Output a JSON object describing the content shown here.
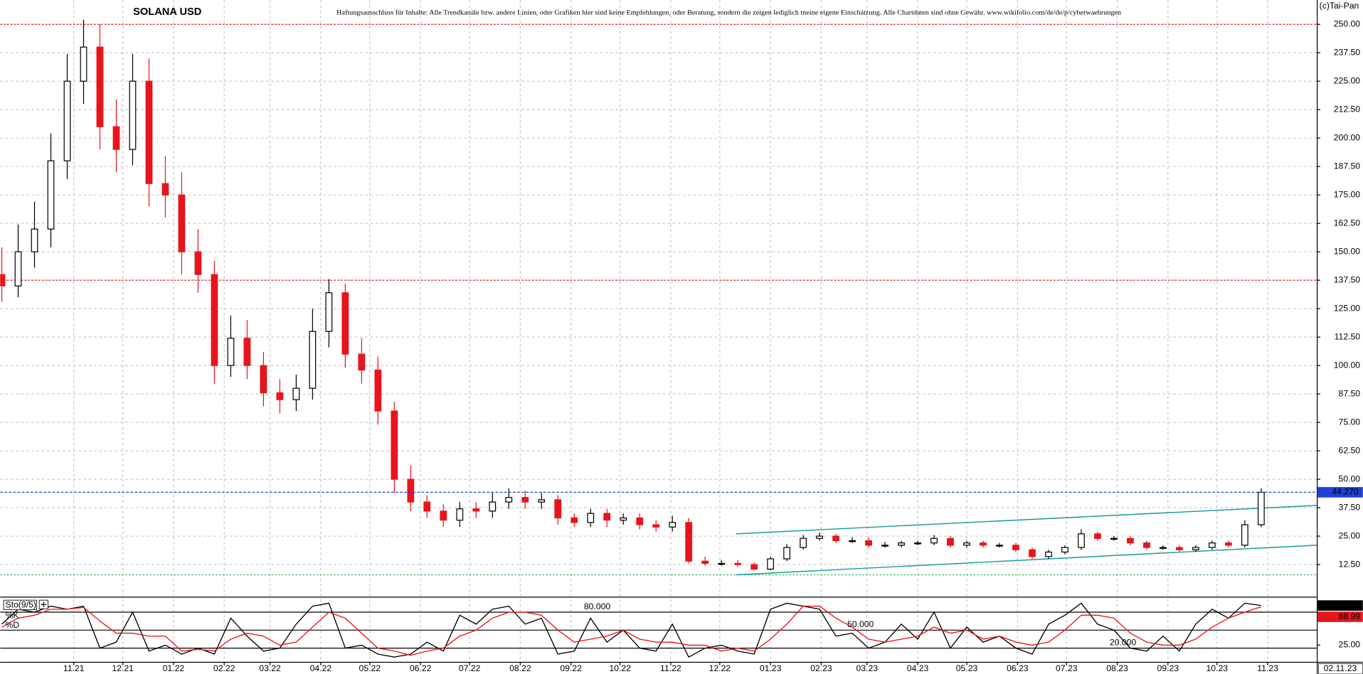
{
  "header": {
    "title": "SOLANA USD",
    "disclaimer": "Haftungsausschluss für Inhalte: Alle Trendkanäle bzw. andere Linien, oder Grafiken hier sind keine Empfehlungen, oder Beratung, sondern die zeigen lediglich meine eigene Einschätzung. Alle Chartdaten sind ohne Gewähr. www.wikifolio.com/de/de/p/cyberwaehrungen",
    "copyright": "(c)Tai-Pan"
  },
  "chart_data": [
    {
      "type": "candlestick",
      "name": "SOLANA USD",
      "x": [
        -44,
        -34,
        -24,
        -14,
        -4,
        6,
        16,
        26,
        36,
        46,
        56,
        66,
        76,
        86,
        96,
        106,
        116,
        126,
        136,
        146,
        156,
        166,
        176,
        186,
        196,
        206,
        216,
        226,
        236,
        246,
        256,
        266,
        276,
        286,
        296,
        306,
        316,
        326,
        336,
        346,
        356,
        366,
        376,
        386,
        396,
        406,
        416,
        426,
        436,
        446,
        456,
        466,
        476,
        486,
        496,
        506,
        516,
        526,
        536,
        546,
        556,
        566,
        576,
        586,
        596,
        606,
        616,
        626,
        636,
        646,
        656,
        666,
        676,
        686,
        696,
        706,
        716,
        726
      ],
      "open": [
        140,
        135,
        150,
        160,
        190,
        225,
        240,
        205,
        195,
        225,
        180,
        175,
        150,
        140,
        100,
        112,
        100,
        88,
        85,
        90,
        115,
        132,
        105,
        98,
        80,
        50,
        40,
        36,
        32,
        37,
        36,
        40,
        42,
        40,
        41,
        33,
        31,
        35,
        32,
        33,
        30,
        29,
        31,
        14,
        13,
        13,
        12.5,
        10.5,
        15,
        20,
        24,
        25,
        23,
        23,
        21,
        21,
        22,
        22,
        24,
        21,
        22,
        21,
        21,
        19,
        16,
        18,
        20,
        26,
        24,
        24,
        22,
        20,
        20,
        19,
        20,
        22,
        21,
        30
      ],
      "high": [
        152,
        162,
        172,
        202,
        237,
        252,
        250,
        217,
        237,
        235,
        192,
        185,
        160,
        146,
        122,
        120,
        106,
        94,
        96,
        125,
        138,
        136,
        112,
        104,
        84,
        56,
        43,
        39,
        40,
        40,
        44,
        46,
        45,
        44,
        43,
        35,
        37,
        37,
        35,
        35,
        32,
        34,
        33,
        16,
        14.5,
        14.5,
        13.5,
        16,
        21.5,
        25.5,
        26.5,
        26,
        24.5,
        24.5,
        22.5,
        23,
        23,
        25.5,
        25,
        23,
        23,
        22,
        22,
        20,
        19,
        21,
        28,
        27,
        25,
        25,
        23,
        21,
        21,
        21,
        23,
        23,
        32,
        46
      ],
      "low": [
        128,
        130,
        143,
        152,
        182,
        215,
        195,
        185,
        188,
        170,
        165,
        140,
        132,
        92,
        95,
        94,
        82,
        79,
        80,
        85,
        108,
        99,
        92,
        74,
        44,
        36,
        33,
        29,
        29,
        33,
        33,
        37,
        37,
        37,
        30,
        29,
        29,
        29,
        30,
        28,
        27,
        27,
        13,
        12,
        12,
        11.5,
        10,
        10,
        14,
        19,
        23,
        22,
        22,
        20,
        20,
        20,
        21,
        21,
        20,
        20,
        20,
        20,
        18,
        15,
        15,
        17,
        19,
        23,
        23,
        21,
        19,
        19,
        18,
        18,
        19,
        20,
        20,
        29
      ],
      "close": [
        135,
        150,
        160,
        190,
        225,
        240,
        205,
        195,
        225,
        180,
        175,
        150,
        140,
        100,
        112,
        100,
        88,
        85,
        90,
        115,
        132,
        105,
        98,
        80,
        50,
        40,
        36,
        32,
        37,
        36,
        40,
        42,
        40,
        41,
        33,
        31,
        35,
        32,
        33,
        30,
        29,
        31,
        14,
        13,
        13,
        12.5,
        10.5,
        15,
        20,
        24,
        25,
        23,
        23,
        21,
        21,
        22,
        22,
        24,
        21,
        22,
        21,
        21,
        19,
        16,
        18,
        20,
        26,
        24,
        24,
        22,
        20,
        20,
        19,
        20,
        22,
        21,
        30,
        44.27
      ],
      "up_color": "#000000",
      "down_color": "#e8141c",
      "xlim": [
        -45,
        760
      ],
      "ylim": [
        -1.25,
        260.7
      ],
      "xticks": [
        {
          "value": 0,
          "label": "11.21"
        },
        {
          "value": 30,
          "label": "12.21"
        },
        {
          "value": 61,
          "label": "01.22"
        },
        {
          "value": 92,
          "label": "02.22"
        },
        {
          "value": 120,
          "label": "03.22"
        },
        {
          "value": 151,
          "label": "04.22"
        },
        {
          "value": 181,
          "label": "05.22"
        },
        {
          "value": 212,
          "label": "06.22"
        },
        {
          "value": 242,
          "label": "07.22"
        },
        {
          "value": 273,
          "label": "08.22"
        },
        {
          "value": 304,
          "label": "09.22"
        },
        {
          "value": 334,
          "label": "10.22"
        },
        {
          "value": 365,
          "label": "11.22"
        },
        {
          "value": 395,
          "label": "12.22"
        },
        {
          "value": 426,
          "label": "01.23"
        },
        {
          "value": 457,
          "label": "02.23"
        },
        {
          "value": 485,
          "label": "03.23"
        },
        {
          "value": 516,
          "label": "04.23"
        },
        {
          "value": 546,
          "label": "05.23"
        },
        {
          "value": 577,
          "label": "06.23"
        },
        {
          "value": 607,
          "label": "07.23"
        },
        {
          "value": 638,
          "label": "08.23"
        },
        {
          "value": 669,
          "label": "09.23"
        },
        {
          "value": 699,
          "label": "10.23"
        },
        {
          "value": 730,
          "label": "11.23"
        }
      ],
      "yticks": [
        {
          "value": 12.5,
          "label": "12.50"
        },
        {
          "value": 25,
          "label": "25.00"
        },
        {
          "value": 37.5,
          "label": "37.50"
        },
        {
          "value": 50,
          "label": "50.00"
        },
        {
          "value": 62.5,
          "label": "62.50"
        },
        {
          "value": 75,
          "label": "75.00"
        },
        {
          "value": 87.5,
          "label": "87.50"
        },
        {
          "value": 100,
          "label": "100.00"
        },
        {
          "value": 112.5,
          "label": "112.50"
        },
        {
          "value": 125,
          "label": "125.00"
        },
        {
          "value": 137.5,
          "label": "137.50"
        },
        {
          "value": 150,
          "label": "150.00"
        },
        {
          "value": 162.5,
          "label": "162.50"
        },
        {
          "value": 175,
          "label": "175.00"
        },
        {
          "value": 187.5,
          "label": "187.50"
        },
        {
          "value": 200,
          "label": "200.00"
        },
        {
          "value": 212.5,
          "label": "212.50"
        },
        {
          "value": 225,
          "label": "225.00"
        },
        {
          "value": 237.5,
          "label": "237.50"
        },
        {
          "value": 250,
          "label": "250.00"
        }
      ],
      "grid": true,
      "last_price": {
        "value": 44.27,
        "label": "44.270",
        "color": "#1f3fd6"
      },
      "hlines": [
        {
          "value": 250,
          "color": "#e8141c"
        },
        {
          "value": 137.5,
          "color": "#e8141c"
        },
        {
          "value": 8,
          "color": "#2fb35a"
        }
      ],
      "trendlines": [
        {
          "color": "#1a9a9a",
          "x": [
            405,
            760
          ],
          "y": [
            26,
            38.5
          ]
        },
        {
          "color": "#1a9a9a",
          "x": [
            405,
            760
          ],
          "y": [
            8,
            21
          ]
        }
      ],
      "date_label": "02.11.23"
    },
    {
      "type": "stochastic",
      "name": "Sto(9/5)",
      "x": [
        -44,
        -34,
        -24,
        -14,
        -4,
        6,
        16,
        26,
        36,
        46,
        56,
        66,
        76,
        86,
        96,
        106,
        116,
        126,
        136,
        146,
        156,
        166,
        176,
        186,
        196,
        206,
        216,
        226,
        236,
        246,
        256,
        266,
        276,
        286,
        296,
        306,
        316,
        326,
        336,
        346,
        356,
        366,
        376,
        386,
        396,
        406,
        416,
        426,
        436,
        446,
        456,
        466,
        476,
        486,
        496,
        506,
        516,
        526,
        536,
        546,
        556,
        566,
        576,
        586,
        596,
        606,
        616,
        626,
        636,
        646,
        656,
        666,
        676,
        686,
        696,
        706,
        716,
        726
      ],
      "series": [
        {
          "name": "%K",
          "color": "#000000",
          "values": [
            60,
            85,
            80,
            90,
            85,
            90,
            20,
            30,
            80,
            15,
            25,
            10,
            20,
            10,
            70,
            40,
            15,
            20,
            60,
            90,
            95,
            20,
            25,
            10,
            5,
            10,
            30,
            15,
            75,
            60,
            85,
            90,
            60,
            70,
            10,
            15,
            70,
            30,
            50,
            20,
            15,
            60,
            5,
            20,
            25,
            15,
            10,
            85,
            95,
            90,
            85,
            40,
            45,
            20,
            30,
            60,
            35,
            80,
            20,
            55,
            30,
            40,
            20,
            10,
            60,
            75,
            95,
            60,
            50,
            20,
            15,
            40,
            15,
            60,
            85,
            70,
            95,
            91.09
          ]
        },
        {
          "name": "%D",
          "color": "#e8141c",
          "values": [
            55,
            70,
            75,
            85,
            85,
            88,
            65,
            45,
            45,
            40,
            40,
            15,
            18,
            15,
            35,
            45,
            40,
            25,
            30,
            55,
            80,
            70,
            45,
            20,
            15,
            8,
            15,
            20,
            40,
            50,
            70,
            80,
            80,
            75,
            50,
            30,
            35,
            40,
            50,
            35,
            30,
            30,
            25,
            25,
            15,
            20,
            15,
            35,
            60,
            90,
            90,
            70,
            55,
            35,
            30,
            35,
            40,
            55,
            45,
            50,
            35,
            40,
            30,
            25,
            30,
            50,
            75,
            75,
            70,
            45,
            30,
            25,
            25,
            35,
            55,
            70,
            80,
            88.99
          ]
        }
      ],
      "ylim": [
        0,
        100
      ],
      "yticks": [
        {
          "value": 25,
          "label": "25.00"
        }
      ],
      "levels": [
        {
          "value": 80,
          "label": "80.000"
        },
        {
          "value": 50,
          "label": "50.000"
        },
        {
          "value": 20,
          "label": "20.000"
        }
      ]
    }
  ]
}
